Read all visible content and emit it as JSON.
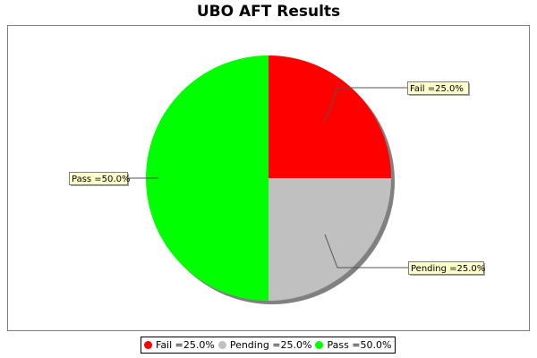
{
  "chart_data": {
    "type": "pie",
    "title": "UBO AFT Results",
    "slices": [
      {
        "name": "Fail",
        "value": 25.0,
        "label": "Fail =25.0%",
        "color": "#ff0000"
      },
      {
        "name": "Pending",
        "value": 25.0,
        "label": "Pending =25.0%",
        "color": "#c0c0c0"
      },
      {
        "name": "Pass",
        "value": 50.0,
        "label": "Pass =50.0%",
        "color": "#00ff00"
      }
    ],
    "legend_position": "bottom",
    "label_box_color": "#ffffcc"
  },
  "legend": {
    "items": [
      {
        "label": "Fail =25.0%",
        "color": "#ff0000"
      },
      {
        "label": "Pending =25.0%",
        "color": "#c0c0c0"
      },
      {
        "label": "Pass =50.0%",
        "color": "#00ff00"
      }
    ]
  }
}
